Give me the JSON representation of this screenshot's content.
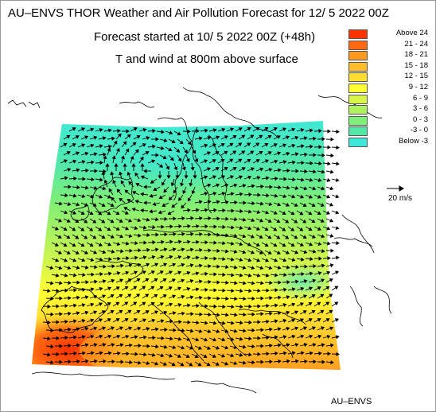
{
  "header": {
    "title": "AU–ENVS THOR Weather and Air Pollution Forecast for 12/ 5 2022  00Z",
    "forecast_started": "Forecast started at 10/ 5 2022  00Z (+48h)",
    "field": "T and wind at 800m above surface"
  },
  "legend": {
    "items": [
      {
        "label": "Above   24",
        "color": "#ff3300"
      },
      {
        "label": "21 -  24",
        "color": "#ff6a12"
      },
      {
        "label": "18 -  21",
        "color": "#ff9a1f"
      },
      {
        "label": "15 -  18",
        "color": "#ffbe2a"
      },
      {
        "label": "12 -  15",
        "color": "#ffde33"
      },
      {
        "label": "9 -  12",
        "color": "#ffff33"
      },
      {
        "label": "6 -   9",
        "color": "#d8f54a"
      },
      {
        "label": "3 -   6",
        "color": "#aef25e"
      },
      {
        "label": "0 -   3",
        "color": "#7eef78"
      },
      {
        "label": "-3 -   0",
        "color": "#55e7a6"
      },
      {
        "label": "Below   -3",
        "color": "#3ee8d8"
      }
    ]
  },
  "wind_scale": {
    "label": "20 m/s"
  },
  "footer": {
    "credit": "AU–ENVS"
  }
}
